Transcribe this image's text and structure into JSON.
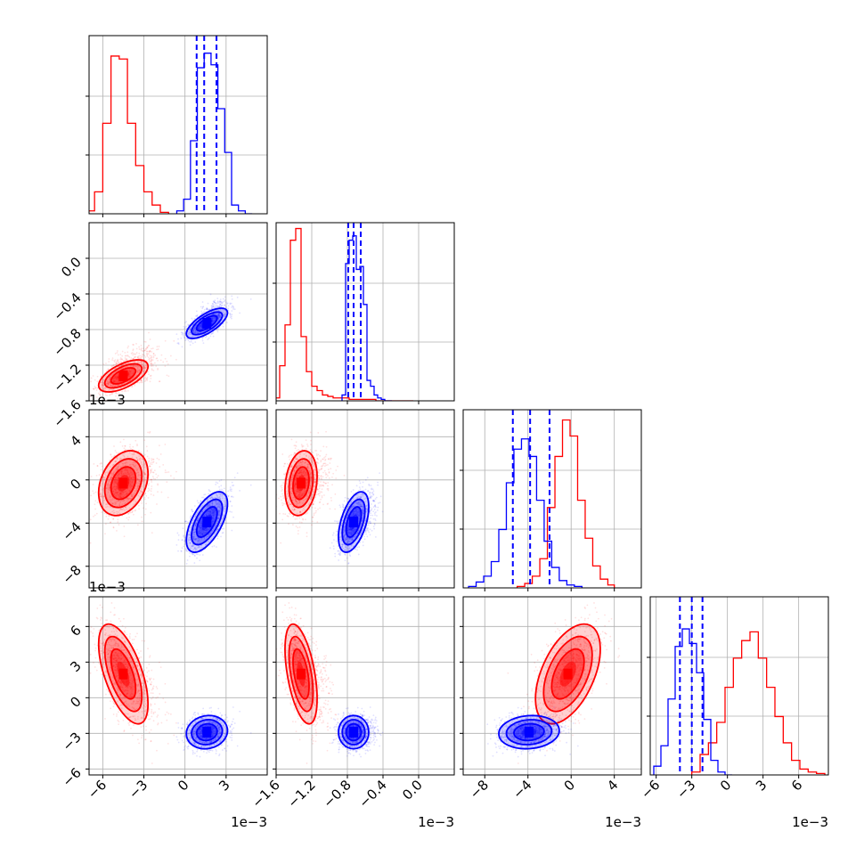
{
  "chart_data": {
    "type": "corner",
    "description_free": true,
    "n_params": 4,
    "grid": true,
    "series": [
      {
        "color": "#ff0000",
        "marginals": [
          {
            "mean": -4.5,
            "sd": 0.9,
            "skew": 0.5
          },
          {
            "mean": -1.32,
            "sd": 0.09,
            "skew": 1.2
          },
          {
            "mean": -0.3,
            "sd": 1.5
          },
          {
            "mean": 2.0,
            "sd": 2.1
          }
        ],
        "hist": [
          {
            "bins": [
              -7.2,
              -6.6,
              -6.0,
              -5.4,
              -4.8,
              -4.2,
              -3.6,
              -3.0,
              -2.4,
              -1.8,
              -1.2
            ],
            "counts": [
              0.02,
              0.15,
              0.62,
              1.08,
              1.06,
              0.62,
              0.33,
              0.15,
              0.06,
              0.01
            ]
          },
          {
            "bins": [
              -1.62,
              -1.56,
              -1.5,
              -1.44,
              -1.38,
              -1.32,
              -1.26,
              -1.2,
              -1.14,
              -1.08,
              -1.02,
              -0.96,
              -0.9,
              -0.84,
              -0.78,
              -0.72,
              -0.66,
              -0.6,
              -0.54,
              -0.48,
              -0.42,
              -0.36,
              -0.3,
              -0.24,
              -0.18,
              -0.12,
              -0.06
            ],
            "counts": [
              0.02,
              0.24,
              0.52,
              1.1,
              1.18,
              0.44,
              0.2,
              0.1,
              0.07,
              0.04,
              0.03,
              0.02,
              0.02,
              0.02,
              0.01,
              0.01,
              0.01,
              0.01,
              0.01,
              0.0,
              0.0,
              0.0,
              0.0,
              0.0,
              0.0,
              0.0
            ]
          },
          {
            "bins": [
              -5.0,
              -4.3,
              -3.6,
              -2.9,
              -2.2,
              -1.5,
              -0.8,
              -0.1,
              0.6,
              1.3,
              2.0,
              2.7,
              3.4,
              4.0
            ],
            "counts": [
              0.01,
              0.03,
              0.08,
              0.2,
              0.55,
              0.9,
              1.15,
              1.04,
              0.6,
              0.34,
              0.15,
              0.06,
              0.02
            ]
          },
          {
            "bins": [
              -3.0,
              -2.3,
              -1.6,
              -0.9,
              -0.2,
              0.5,
              1.2,
              1.9,
              2.6,
              3.3,
              4.0,
              4.7,
              5.4,
              6.1,
              6.8,
              7.5,
              8.2
            ],
            "counts": [
              0.02,
              0.14,
              0.22,
              0.36,
              0.6,
              0.8,
              0.92,
              0.98,
              0.8,
              0.6,
              0.4,
              0.22,
              0.1,
              0.04,
              0.02,
              0.01
            ]
          }
        ],
        "levels_sigma": [
          0.5,
          1.0,
          1.5,
          2.0
        ]
      },
      {
        "color": "#0000ff",
        "marginals": [
          {
            "mean": 1.6,
            "sd": 0.75
          },
          {
            "mean": -0.73,
            "sd": 0.085,
            "skew": 0.6
          },
          {
            "mean": -3.9,
            "sd": 1.4
          },
          {
            "mean": -2.9,
            "sd": 0.7
          }
        ],
        "hist": [
          {
            "bins": [
              -0.6,
              -0.1,
              0.4,
              0.9,
              1.4,
              1.9,
              2.4,
              2.9,
              3.4,
              3.9,
              4.4,
              4.9
            ],
            "counts": [
              0.02,
              0.1,
              0.5,
              1.0,
              1.1,
              1.02,
              0.72,
              0.42,
              0.06,
              0.02,
              0.0
            ]
          },
          {
            "bins": [
              -0.86,
              -0.82,
              -0.78,
              -0.74,
              -0.7,
              -0.66,
              -0.62,
              -0.58,
              -0.54,
              -0.5,
              -0.46,
              -0.42,
              -0.38,
              -0.34,
              -0.3
            ],
            "counts": [
              0.04,
              0.94,
              1.1,
              1.13,
              0.9,
              0.92,
              0.66,
              0.14,
              0.1,
              0.04,
              0.02,
              0.01,
              0.0,
              0.0
            ]
          },
          {
            "bins": [
              -9.5,
              -8.8,
              -8.1,
              -7.4,
              -6.7,
              -6.0,
              -5.3,
              -4.6,
              -3.9,
              -3.2,
              -2.5,
              -1.8,
              -1.1,
              -0.4,
              0.3,
              1.0
            ],
            "counts": [
              0.01,
              0.04,
              0.08,
              0.18,
              0.4,
              0.72,
              0.95,
              1.02,
              0.9,
              0.6,
              0.32,
              0.14,
              0.05,
              0.02,
              0.01
            ]
          },
          {
            "bins": [
              -6.2,
              -5.6,
              -5.0,
              -4.4,
              -3.8,
              -3.2,
              -2.6,
              -2.0,
              -1.4,
              -0.8,
              -0.2,
              0.4
            ],
            "counts": [
              0.06,
              0.2,
              0.52,
              0.88,
              1.0,
              0.9,
              0.7,
              0.38,
              0.1,
              0.02,
              0.0
            ]
          }
        ],
        "quantile_lines": [
          [
            0.85,
            1.4,
            2.3
          ],
          [
            -0.79,
            -0.73,
            -0.65
          ],
          [
            -5.4,
            -3.8,
            -2.0
          ],
          [
            -4.0,
            -3.0,
            -2.1
          ]
        ]
      }
    ],
    "correlations": {
      "red": [
        [
          1,
          0.6,
          0.3,
          -0.6
        ],
        [
          0.6,
          1,
          0.2,
          -0.5
        ],
        [
          0.3,
          0.2,
          1,
          0.5
        ],
        [
          -0.6,
          -0.5,
          0.5,
          1
        ]
      ],
      "blue": [
        [
          1,
          0.7,
          0.6,
          0.1
        ],
        [
          0.7,
          1,
          0.5,
          0.0
        ],
        [
          0.6,
          0.5,
          1,
          0.1
        ],
        [
          0.1,
          0.0,
          0.1,
          1
        ]
      ]
    },
    "axes": [
      {
        "range": [
          -7.0,
          6.0
        ],
        "ticks": [
          -6,
          -3,
          0,
          3
        ],
        "tick_labels": [
          "−6",
          "−3",
          "0",
          "3"
        ],
        "offset_label": "1e−3"
      },
      {
        "range": [
          -1.6,
          0.4
        ],
        "ticks": [
          -1.6,
          -1.2,
          -0.8,
          -0.4,
          0.0
        ],
        "tick_labels": [
          "−1.6",
          "−1.2",
          "−0.8",
          "−0.4",
          "0.0"
        ],
        "offset_label": "1e−3"
      },
      {
        "range": [
          -10.0,
          6.5
        ],
        "ticks": [
          -8,
          -4,
          0,
          4
        ],
        "tick_labels": [
          "−8",
          "−4",
          "0",
          "4"
        ],
        "offset_label": "1e−3"
      },
      {
        "range": [
          -6.5,
          8.5
        ],
        "ticks": [
          -6,
          -3,
          0,
          3,
          6
        ],
        "tick_labels": [
          "−6",
          "−3",
          "0",
          "3",
          "6"
        ],
        "offset_label": "1e−3"
      }
    ]
  }
}
